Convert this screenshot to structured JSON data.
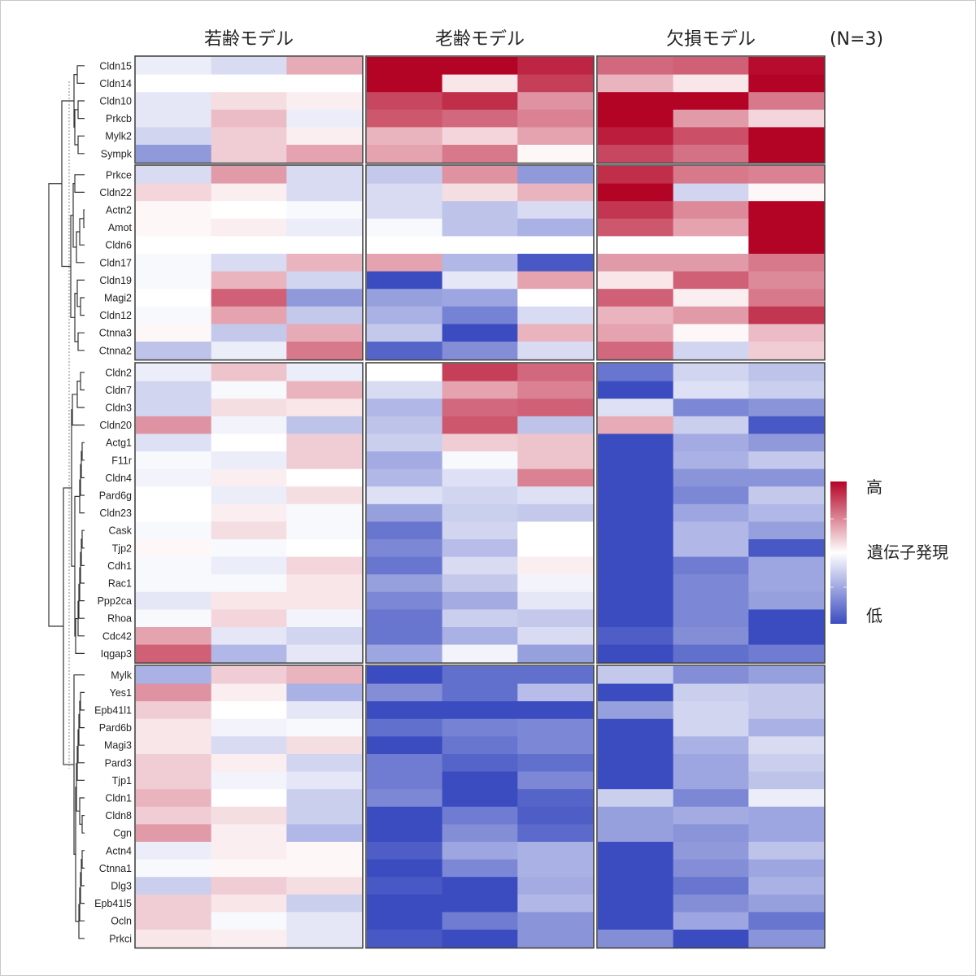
{
  "chart_data": {
    "type": "heatmap",
    "title": "",
    "annotation": "(N=3)",
    "groups": [
      "若齢モデル",
      "老齢モデル",
      "欠損モデル"
    ],
    "replicates_per_group": 3,
    "value_scale": {
      "min": -3,
      "max": 3,
      "description": "relative gene expression (z-score-like)"
    },
    "colorbar": {
      "title": "遺伝子発現",
      "high_label": "高",
      "low_label": "低",
      "high_color": "#b40426",
      "mid_color": "#ffffff",
      "low_color": "#3b4cc0"
    },
    "clusters": [
      {
        "genes": [
          "Cldn15",
          "Cldn14",
          "Cldn10",
          "Prkcb",
          "Mylk2",
          "Sympk"
        ],
        "values": [
          [
            -0.3,
            -0.6,
            1.0,
            3.0,
            3.0,
            2.6,
            1.8,
            1.9,
            2.9
          ],
          [
            0.0,
            0.0,
            0.0,
            3.0,
            0.3,
            2.3,
            0.9,
            0.3,
            3.0
          ],
          [
            -0.4,
            0.4,
            0.2,
            2.2,
            2.5,
            1.3,
            3.0,
            3.0,
            1.6
          ],
          [
            -0.4,
            0.8,
            -0.3,
            2.0,
            1.8,
            1.5,
            3.0,
            1.2,
            0.5
          ],
          [
            -0.7,
            0.6,
            0.2,
            0.9,
            0.5,
            1.1,
            2.7,
            2.1,
            3.0
          ],
          [
            -1.7,
            0.6,
            1.1,
            1.1,
            1.6,
            0.1,
            2.2,
            1.7,
            3.0
          ]
        ]
      },
      {
        "genes": [
          "Prkce",
          "Cldn22",
          "Actn2",
          "Amot",
          "Cldn6",
          "Cldn17",
          "Cldn19",
          "Magi2",
          "Cldn12",
          "Ctnna3",
          "Ctnna2"
        ],
        "values": [
          [
            -0.6,
            1.2,
            -0.6,
            -0.9,
            1.3,
            -1.7,
            2.5,
            1.6,
            1.5
          ],
          [
            0.5,
            0.2,
            -0.6,
            -0.6,
            0.4,
            0.9,
            3.0,
            -0.7,
            0.1
          ],
          [
            0.1,
            0.0,
            -0.1,
            -0.6,
            -1.0,
            -0.6,
            2.4,
            1.4,
            3.0
          ],
          [
            0.1,
            0.2,
            -0.3,
            -0.1,
            -1.0,
            -1.3,
            2.0,
            1.1,
            3.0
          ],
          [
            0.0,
            0.0,
            0.0,
            0.0,
            0.0,
            0.0,
            0.0,
            0.0,
            3.0
          ],
          [
            -0.1,
            -0.6,
            0.9,
            1.1,
            -1.2,
            -2.8,
            1.2,
            1.2,
            1.6
          ],
          [
            -0.1,
            0.9,
            -0.7,
            -3.0,
            -0.4,
            1.1,
            0.3,
            1.9,
            1.4
          ],
          [
            0.0,
            1.9,
            -1.7,
            -1.6,
            -1.5,
            0.0,
            1.9,
            0.2,
            1.6
          ],
          [
            -0.1,
            1.1,
            -0.9,
            -1.3,
            -2.1,
            -0.6,
            0.9,
            1.2,
            2.4
          ],
          [
            0.1,
            -0.9,
            1.0,
            -0.9,
            -3.0,
            0.9,
            1.1,
            0.1,
            0.8
          ],
          [
            -1.0,
            -0.3,
            1.6,
            -2.6,
            -1.9,
            -0.6,
            1.8,
            -0.7,
            0.6
          ]
        ]
      },
      {
        "genes": [
          "Cldn2",
          "Cldn7",
          "Cldn3",
          "Cldn20",
          "Actg1",
          "F11r",
          "Cldn4",
          "Pard6g",
          "Cldn23",
          "Cask",
          "Tjp2",
          "Cdh1",
          "Rac1",
          "Ppp2ca",
          "Rhoa",
          "Cdc42",
          "Iqgap3"
        ],
        "values": [
          [
            -0.3,
            0.7,
            -0.3,
            0.0,
            2.3,
            1.8,
            -2.3,
            -0.7,
            -1.0
          ],
          [
            -0.7,
            -0.1,
            0.9,
            -0.6,
            1.1,
            1.5,
            -3.0,
            -0.5,
            -0.8
          ],
          [
            -0.7,
            0.4,
            0.3,
            -1.2,
            1.8,
            1.9,
            -0.5,
            -2.0,
            -1.8
          ],
          [
            1.3,
            -0.2,
            -1.0,
            -1.0,
            2.0,
            -1.0,
            1.0,
            -0.8,
            -2.8
          ],
          [
            -0.5,
            0.0,
            0.6,
            -0.8,
            0.6,
            0.7,
            -3.0,
            -1.4,
            -1.7
          ],
          [
            -0.1,
            -0.3,
            0.6,
            -1.4,
            -0.1,
            0.7,
            -3.0,
            -1.3,
            -0.9
          ],
          [
            -0.2,
            0.2,
            0.0,
            -1.2,
            -0.5,
            1.5,
            -3.0,
            -1.8,
            -1.8
          ],
          [
            0.0,
            -0.3,
            0.4,
            -0.5,
            -0.7,
            -0.5,
            -3.0,
            -2.0,
            -0.9
          ],
          [
            0.0,
            0.2,
            -0.1,
            -1.6,
            -0.8,
            -0.9,
            -3.0,
            -1.5,
            -1.2
          ],
          [
            -0.1,
            0.4,
            -0.1,
            -2.3,
            -0.7,
            0.0,
            -3.0,
            -1.2,
            -1.6
          ],
          [
            0.1,
            -0.1,
            0.0,
            -2.0,
            -1.1,
            0.0,
            -3.0,
            -1.2,
            -2.8
          ],
          [
            -0.1,
            -0.3,
            0.5,
            -2.3,
            -0.6,
            0.2,
            -3.0,
            -2.2,
            -1.5
          ],
          [
            -0.1,
            -0.1,
            0.3,
            -1.6,
            -0.9,
            -0.2,
            -3.0,
            -2.0,
            -1.5
          ],
          [
            -0.4,
            0.3,
            0.3,
            -2.0,
            -1.4,
            -0.4,
            -3.0,
            -2.0,
            -1.6
          ],
          [
            -0.1,
            0.5,
            -0.2,
            -2.3,
            -0.8,
            -0.9,
            -3.0,
            -2.0,
            -3.0
          ],
          [
            1.1,
            -0.4,
            -0.7,
            -2.3,
            -1.3,
            -0.6,
            -2.7,
            -1.9,
            -3.0
          ],
          [
            1.9,
            -1.2,
            -0.4,
            -1.5,
            -0.2,
            -1.6,
            -3.0,
            -2.4,
            -2.2
          ]
        ]
      },
      {
        "genes": [
          "Mylk",
          "Yes1",
          "Epb41l1",
          "Pard6b",
          "Magi3",
          "Pard3",
          "Tjp1",
          "Cldn1",
          "Cldn8",
          "Cgn",
          "Actn4",
          "Ctnna1",
          "Dlg3",
          "Epb41l5",
          "Ocln",
          "Prkci"
        ],
        "values": [
          [
            -1.3,
            0.6,
            0.9,
            -3.0,
            -2.4,
            -2.4,
            -0.9,
            -1.9,
            -1.6
          ],
          [
            1.3,
            0.2,
            -1.3,
            -1.9,
            -2.4,
            -1.1,
            -3.0,
            -0.8,
            -0.9
          ],
          [
            0.6,
            0.0,
            -0.4,
            -3.0,
            -3.0,
            -3.0,
            -1.6,
            -0.7,
            -0.9
          ],
          [
            0.3,
            -0.2,
            -0.1,
            -2.4,
            -2.1,
            -2.0,
            -3.0,
            -0.7,
            -1.3
          ],
          [
            0.3,
            -0.6,
            0.4,
            -3.0,
            -2.3,
            -2.0,
            -3.0,
            -1.3,
            -0.6
          ],
          [
            0.6,
            0.2,
            -0.7,
            -2.2,
            -2.6,
            -2.4,
            -3.0,
            -1.5,
            -0.8
          ],
          [
            0.6,
            -0.2,
            -0.4,
            -2.2,
            -3.0,
            -2.0,
            -3.0,
            -1.5,
            -1.0
          ],
          [
            0.9,
            0.0,
            -0.8,
            -2.0,
            -3.0,
            -2.6,
            -0.8,
            -2.0,
            -0.3
          ],
          [
            0.6,
            0.4,
            -0.8,
            -3.0,
            -2.2,
            -2.7,
            -1.6,
            -1.4,
            -1.5
          ],
          [
            1.2,
            0.2,
            -1.2,
            -3.0,
            -1.9,
            -2.5,
            -1.6,
            -1.8,
            -1.5
          ],
          [
            -0.3,
            0.2,
            0.1,
            -2.7,
            -1.5,
            -1.3,
            -3.0,
            -1.7,
            -1.0
          ],
          [
            -0.1,
            0.1,
            0.1,
            -3.0,
            -2.0,
            -1.3,
            -3.0,
            -1.9,
            -1.5
          ],
          [
            -0.8,
            0.6,
            0.4,
            -2.8,
            -3.0,
            -1.4,
            -3.0,
            -2.3,
            -1.3
          ],
          [
            0.6,
            0.3,
            -0.8,
            -3.0,
            -3.0,
            -1.2,
            -3.0,
            -1.9,
            -1.6
          ],
          [
            0.6,
            -0.1,
            -0.4,
            -3.0,
            -2.2,
            -1.8,
            -3.0,
            -1.5,
            -2.3
          ],
          [
            0.3,
            0.2,
            -0.4,
            -2.8,
            -3.0,
            -1.8,
            -1.9,
            -3.0,
            -1.8
          ]
        ]
      }
    ]
  }
}
